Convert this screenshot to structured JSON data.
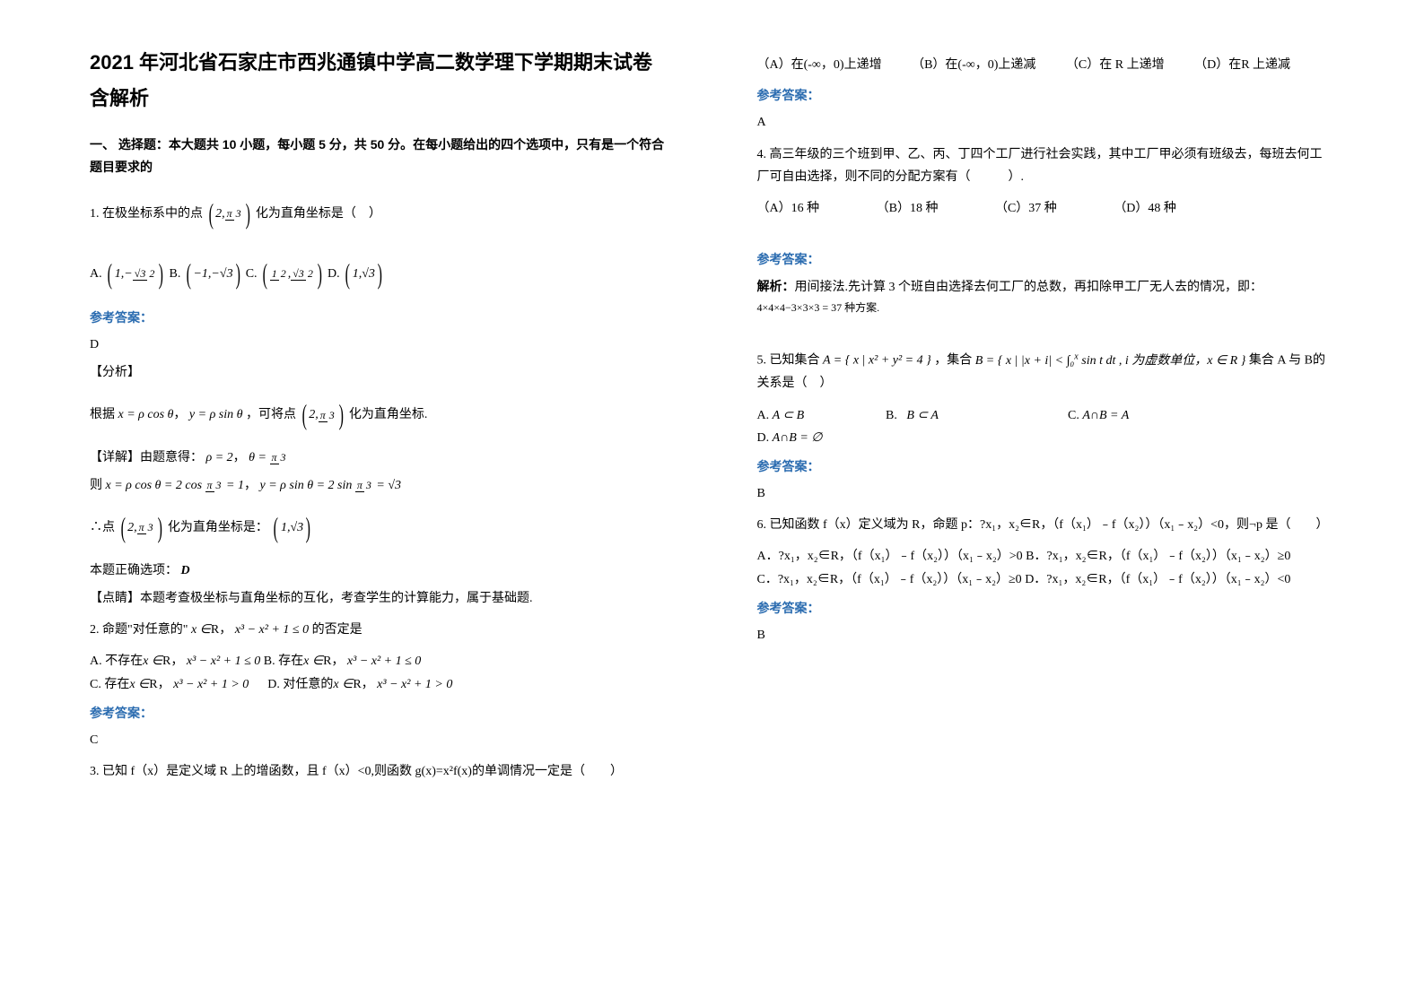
{
  "title": "2021 年河北省石家庄市西兆通镇中学高二数学理下学期期末试卷含解析",
  "section1_header": "一、 选择题：本大题共 10 小题，每小题 5 分，共 50 分。在每小题给出的四个选项中，只有是一个符合题目要求的",
  "answer_label": "参考答案：",
  "q1": {
    "stem_prefix": "1. 在极坐标系中的点",
    "stem_suffix": "化为直角坐标是（　）",
    "ans": "D",
    "analysis_label": "【分析】",
    "analysis_prefix": "根据",
    "analysis_mid": "，可将点",
    "analysis_suffix": "化为直角坐标.",
    "detail_label": "【详解】由题意得：",
    "then": "则",
    "conclude_prefix": "∴点",
    "conclude_suffix": "化为直角坐标是：",
    "correct": "本题正确选项：",
    "correct_val": "D",
    "comment_label": "【点睛】本题考查极坐标与直角坐标的互化，考查学生的计算能力，属于基础题."
  },
  "q2": {
    "stem": "2. 命题\"对任意的\"",
    "stem_mid": "，",
    "stem_end": " 的否定是",
    "optA_pre": "A. 不存在",
    "optB_pre": " B. 存在",
    "optC_pre": "C. 存在",
    "optD_pre": "D. 对任意的",
    "ans": "C"
  },
  "q3": {
    "stem": "3. 已知 f（x）是定义域 R 上的增函数，且 f（x）<0,则函数 g(x)=x²f(x)的单调情况一定是（　　）",
    "optA": "（A）在(-∞，0)上递增",
    "optB": "（B）在(-∞，0)上递减",
    "optC": "（C）在 R 上递增",
    "optD": "（D）在R 上递减",
    "ans": "A"
  },
  "q4": {
    "stem": "4. 高三年级的三个班到甲、乙、丙、丁四个工厂进行社会实践，其中工厂甲必须有班级去，每班去何工厂可自由选择，则不同的分配方案有（　　　）.",
    "optA": "（A）16 种",
    "optB": "（B）18 种",
    "optC": "（C）37 种",
    "optD": "（D）48 种",
    "ans_label": "参考答案：",
    "solution_prefix": "解析：",
    "solution": "用间接法.先计算 3 个班自由选择去何工厂的总数，再扣除甲工厂无人去的情况，即：",
    "calc": "4×4×4−3×3×3 = 37 种方案."
  },
  "q5": {
    "stem_pre": "5. 已知集合",
    "stem_mid": "，集合",
    "stem_end": "集合 A 与 B的关系是（　）",
    "optA": "A. ",
    "optA_math": "A ⊂ B",
    "optB": "B. ",
    "optB_math": "B ⊂ A",
    "optC": "C. ",
    "optC_math": "A∩B = A",
    "optD": "D. ",
    "optD_math": "A∩B = ∅",
    "ans": "B"
  },
  "q6": {
    "stem": "6. 已知函数 f（x）定义域为 R，命题 p：?x₁，x₂∈R，（f（x₁）﹣f（x₂））（x₁﹣x₂）<0，则¬p 是（　　）",
    "optA": "A．?x₁，x₂∈R，（f（x₁）﹣f（x₂））（x₁﹣x₂）>0",
    "optB": "B．?x₁，x₂∈R，（f（x₁）﹣f（x₂））（x₁﹣x₂）≥0",
    "optC": "C．?x₁，x₂∈R，（f（x₁）﹣f（x₂））（x₁﹣x₂）≥0",
    "optD": "D．?x₁，x₂∈R，（f（x₁）﹣f（x₂））（x₁﹣x₂）<0",
    "ans": "B"
  },
  "colors": {
    "text": "#000000",
    "answer_blue": "#2b6cb0",
    "background": "#ffffff"
  }
}
